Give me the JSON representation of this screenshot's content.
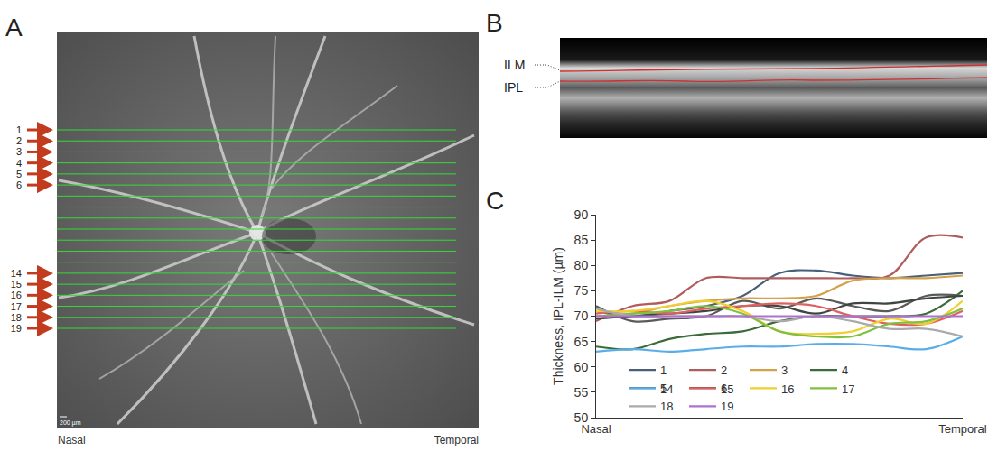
{
  "panel_a": {
    "label": "A",
    "scan_lines": [
      "1",
      "2",
      "3",
      "4",
      "5",
      "6",
      null,
      null,
      null,
      null,
      null,
      null,
      null,
      "14",
      "15",
      "16",
      "17",
      "18",
      "19"
    ],
    "left_label": "Nasal",
    "right_label": "Temporal",
    "scale_bar": "200 µm"
  },
  "panel_b": {
    "label": "B",
    "layers": [
      "ILM",
      "IPL"
    ]
  },
  "panel_c": {
    "label": "C"
  },
  "chart_data": {
    "type": "line",
    "line_style": "smooth",
    "grid": false,
    "legend": "lower center",
    "y_label": "Thickness, IPL-ILM (µm)",
    "x": [
      0,
      1,
      2,
      3,
      4,
      5,
      6,
      7,
      8,
      9,
      10
    ],
    "xlim": [
      0,
      10
    ],
    "xticks": [
      {
        "value": 0,
        "label": "Nasal"
      },
      {
        "value": 10,
        "label": "Temporal"
      }
    ],
    "ylim": [
      50,
      90
    ],
    "yticks": [
      50,
      55,
      60,
      65,
      70,
      75,
      80,
      85,
      90
    ],
    "series": [
      {
        "name": "1",
        "color": "#4a5f78",
        "values": [
          71,
          70,
          71,
          72,
          74,
          78.5,
          79,
          78,
          77.5,
          78,
          78.5
        ]
      },
      {
        "name": "2",
        "color": "#b05c5c",
        "values": [
          69,
          72,
          73,
          77.5,
          77.5,
          77.5,
          77.5,
          77.5,
          78,
          85.5,
          85.5
        ]
      },
      {
        "name": "3",
        "color": "#d4a04a",
        "values": [
          70,
          70.5,
          72,
          73,
          73.5,
          73.5,
          74,
          77,
          77.5,
          77.5,
          78
        ]
      },
      {
        "name": "4",
        "color": "#3b6b3b",
        "values": [
          64,
          63.5,
          65.5,
          66.5,
          67,
          69,
          70,
          70,
          70,
          70.5,
          75
        ]
      },
      {
        "name": "5",
        "color": "#5a5a5a",
        "values": [
          72,
          69,
          69.5,
          70,
          73,
          71.5,
          73.5,
          72,
          71,
          74,
          74
        ]
      },
      {
        "name": "6",
        "color": "#3f463f",
        "values": [
          69.5,
          70,
          70.5,
          71,
          72,
          72,
          70.5,
          72.5,
          72.5,
          73.5,
          74
        ]
      },
      {
        "name": "14",
        "color": "#5aaee8",
        "values": [
          63,
          63.5,
          63,
          63.5,
          64,
          64,
          64.5,
          64.5,
          64,
          63.5,
          66
        ]
      },
      {
        "name": "15",
        "color": "#e06060",
        "values": [
          70.5,
          71,
          70.5,
          71.5,
          72,
          72.5,
          72,
          70,
          68.5,
          68.5,
          71
        ]
      },
      {
        "name": "16",
        "color": "#f0d030",
        "values": [
          71,
          71,
          72,
          73,
          71,
          67,
          66.5,
          67,
          69.5,
          68.5,
          73
        ]
      },
      {
        "name": "17",
        "color": "#80c040",
        "values": [
          70,
          70.5,
          71,
          72,
          70.5,
          67,
          66,
          66,
          68.5,
          69,
          71.5
        ]
      },
      {
        "name": "18",
        "color": "#aaaaaa",
        "values": [
          71.5,
          70,
          70,
          70,
          70,
          69,
          70,
          69,
          67.5,
          67.5,
          66
        ]
      },
      {
        "name": "19",
        "color": "#b070d0",
        "values": [
          70,
          70,
          70,
          70,
          70,
          70,
          70,
          70,
          70,
          70,
          70
        ]
      }
    ]
  }
}
